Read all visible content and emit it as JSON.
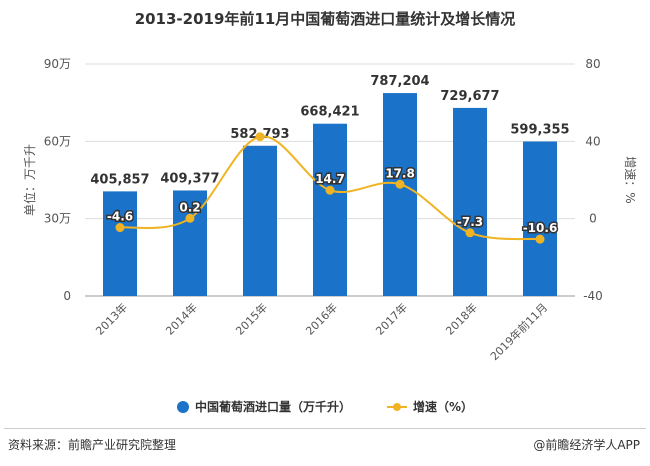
{
  "chart_data": {
    "type": "bar+line",
    "title": "2013-2019年前11月中国葡萄酒进口量统计及增长情况",
    "categories": [
      "2013年",
      "2014年",
      "2015年",
      "2016年",
      "2017年",
      "2018年",
      "2019年前11月"
    ],
    "series": [
      {
        "name": "中国葡萄酒进口量（万千升）",
        "type": "bar",
        "axis": "left",
        "color": "#1a73c8",
        "values": [
          405857,
          409377,
          582793,
          668421,
          787204,
          729677,
          599355
        ],
        "labels": [
          "405,857",
          "409,377",
          "582,793",
          "668,421",
          "787,204",
          "729,677",
          "599,355"
        ]
      },
      {
        "name": "增速（%）",
        "type": "line",
        "axis": "right",
        "color": "#f0b323",
        "values": [
          -4.6,
          0.2,
          42.4,
          14.7,
          17.8,
          -7.3,
          -10.6
        ],
        "labels": [
          "-4.6",
          "0.2",
          null,
          "14.7",
          "17.8",
          "-7.3",
          "-10.6"
        ]
      }
    ],
    "ylabel": "单位：万千升",
    "y2label": "增速：%",
    "ylim": [
      0,
      900000
    ],
    "y2lim": [
      -40,
      80
    ],
    "yticks": [
      {
        "v": 0,
        "label": "0"
      },
      {
        "v": 300000,
        "label": "30万"
      },
      {
        "v": 600000,
        "label": "60万"
      },
      {
        "v": 900000,
        "label": "90万"
      }
    ],
    "y2ticks": [
      {
        "v": -40,
        "label": "-40"
      },
      {
        "v": 0,
        "label": "0"
      },
      {
        "v": 40,
        "label": "40"
      },
      {
        "v": 80,
        "label": "80"
      }
    ],
    "grid": true,
    "legend_position": "bottom"
  },
  "footer": {
    "source": "资料来源：前瞻产业研究院整理",
    "brand": "@前瞻经济学人APP"
  }
}
